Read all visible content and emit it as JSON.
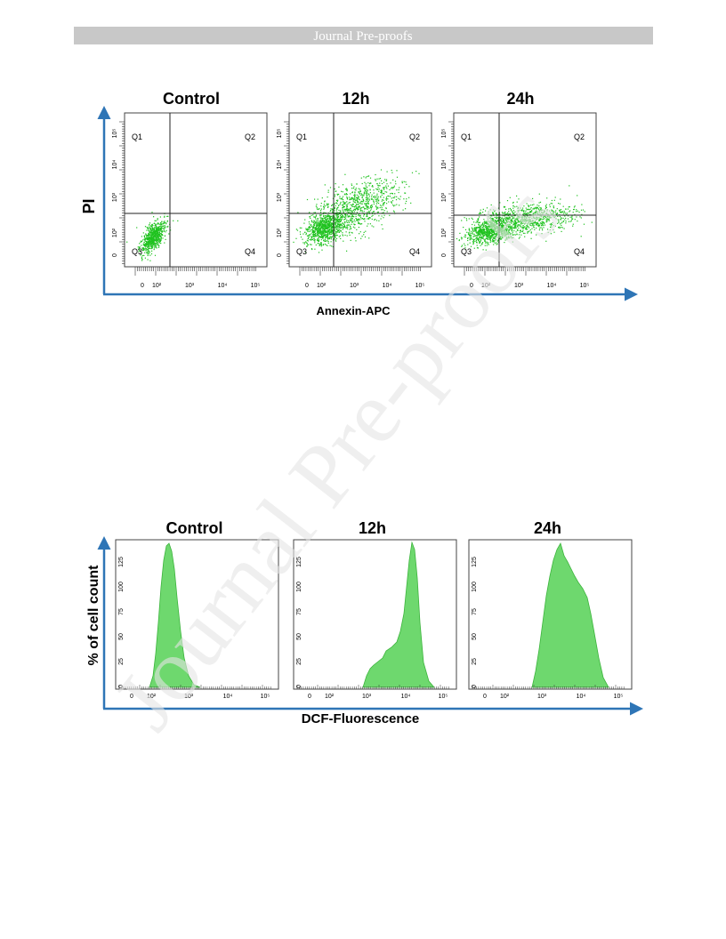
{
  "header": {
    "title": "Journal Pre-proofs"
  },
  "watermark": "Journal Pre-proofs",
  "figure1": {
    "panels": [
      {
        "title": "Control"
      },
      {
        "title": "12h"
      },
      {
        "title": "24h"
      }
    ],
    "quadrants": [
      "Q1",
      "Q2",
      "Q3",
      "Q4"
    ],
    "xticks": [
      "0",
      "10²",
      "10³",
      "10⁴",
      "10⁵"
    ],
    "yticks": [
      "0",
      "10²",
      "10³",
      "10⁴",
      "10⁵"
    ],
    "ylabel": "PI",
    "xlabel": "Annexin-APC"
  },
  "figure2": {
    "panels": [
      {
        "title": "Control"
      },
      {
        "title": "12h"
      },
      {
        "title": "24h"
      }
    ],
    "xticks": [
      "0",
      "10²",
      "10³",
      "10⁴",
      "10⁵"
    ],
    "yticks": [
      "0",
      "25",
      "50",
      "75",
      "100",
      "125"
    ],
    "ylabel": "% of cell count",
    "xlabel": "DCF-Fluorescence"
  }
}
